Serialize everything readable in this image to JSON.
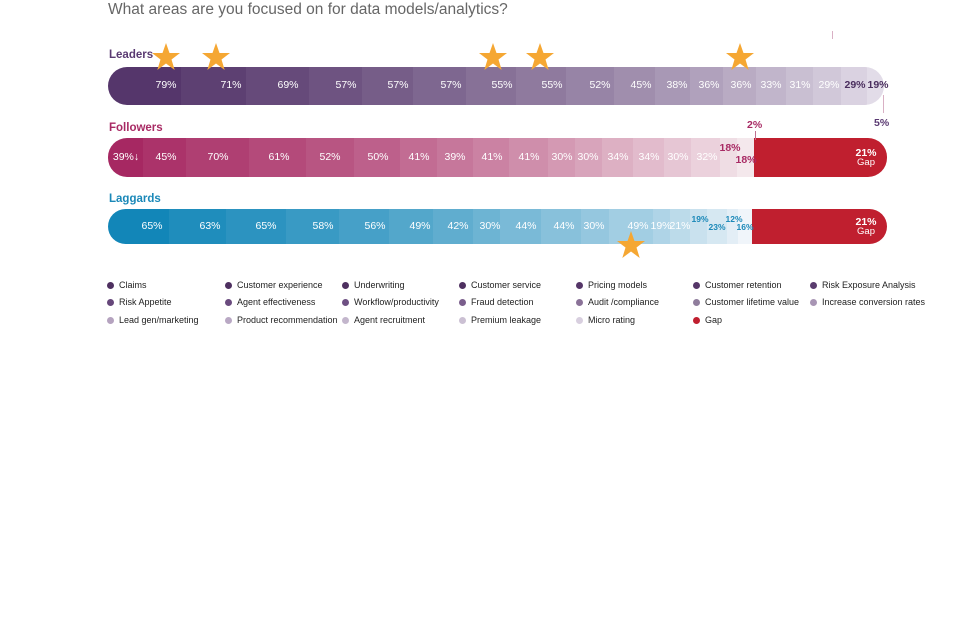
{
  "title": "What areas are you focused on for data models/analytics?",
  "chart_data": {
    "type": "stacked-bar",
    "title": "What areas are you focused on for data models/analytics?",
    "series": [
      {
        "name": "Leaders",
        "color": "#5a3a72",
        "values": [
          "79%",
          "71%",
          "69%",
          "57%",
          "57%",
          "57%",
          "55%",
          "55%",
          "52%",
          "45%",
          "38%",
          "36%",
          "36%",
          "33%",
          "31%",
          "29%",
          "29%",
          "19%"
        ],
        "extra_label": "5%",
        "stars": [
          0,
          1,
          6,
          7,
          12
        ]
      },
      {
        "name": "Followers",
        "color": "#a82a64",
        "values": [
          "39%↓",
          "45%",
          "70%",
          "61%",
          "52%",
          "50%",
          "41%",
          "39%",
          "41%",
          "41%",
          "30%",
          "30%",
          "34%",
          "34%",
          "30%",
          "32%",
          "18%",
          "18%"
        ],
        "extra_label": "2%",
        "gap": {
          "value": "21%",
          "label": "Gap"
        }
      },
      {
        "name": "Laggards",
        "color": "#1a88b8",
        "values": [
          "65%",
          "63%",
          "65%",
          "58%",
          "56%",
          "49%",
          "42%",
          "30%",
          "44%",
          "44%",
          "30%",
          "49%",
          "19%",
          "21%",
          "19%",
          "23%",
          "12%",
          "16%"
        ],
        "gap": {
          "value": "21%",
          "label": "Gap"
        },
        "stars": [
          11
        ]
      }
    ],
    "legend": [
      {
        "label": "Claims",
        "color": "#4e3060"
      },
      {
        "label": "Customer experience",
        "color": "#4e3060"
      },
      {
        "label": "Underwriting",
        "color": "#4e3060"
      },
      {
        "label": "Customer service",
        "color": "#4e3060"
      },
      {
        "label": "Pricing models",
        "color": "#553668"
      },
      {
        "label": "Customer retention",
        "color": "#553668"
      },
      {
        "label": "Risk Exposure Analysis",
        "color": "#5a3c6e"
      },
      {
        "label": "Risk Appetite",
        "color": "#66477a"
      },
      {
        "label": "Agent effectiveness",
        "color": "#6a4b7e"
      },
      {
        "label": "Workflow/productivity",
        "color": "#6e5083"
      },
      {
        "label": "Fraud detection",
        "color": "#7a5e8c"
      },
      {
        "label": "Audit /compliance",
        "color": "#8a7298"
      },
      {
        "label": "Customer lifetime value",
        "color": "#8f7d9c"
      },
      {
        "label": "Increase conversion rates",
        "color": "#a895b4"
      },
      {
        "label": "Lead gen/marketing",
        "color": "#b5a3bf"
      },
      {
        "label": "Product recommendation",
        "color": "#b9a8c4"
      },
      {
        "label": "Agent recruitment",
        "color": "#c3b6cc"
      },
      {
        "label": "Premium leakage",
        "color": "#cbc0d3"
      },
      {
        "label": "Micro rating",
        "color": "#d8cfdf"
      },
      {
        "label": "Gap",
        "color": "#c01f2f"
      }
    ],
    "gap_color": "#c01f2f",
    "star_color": "#f5a733"
  }
}
